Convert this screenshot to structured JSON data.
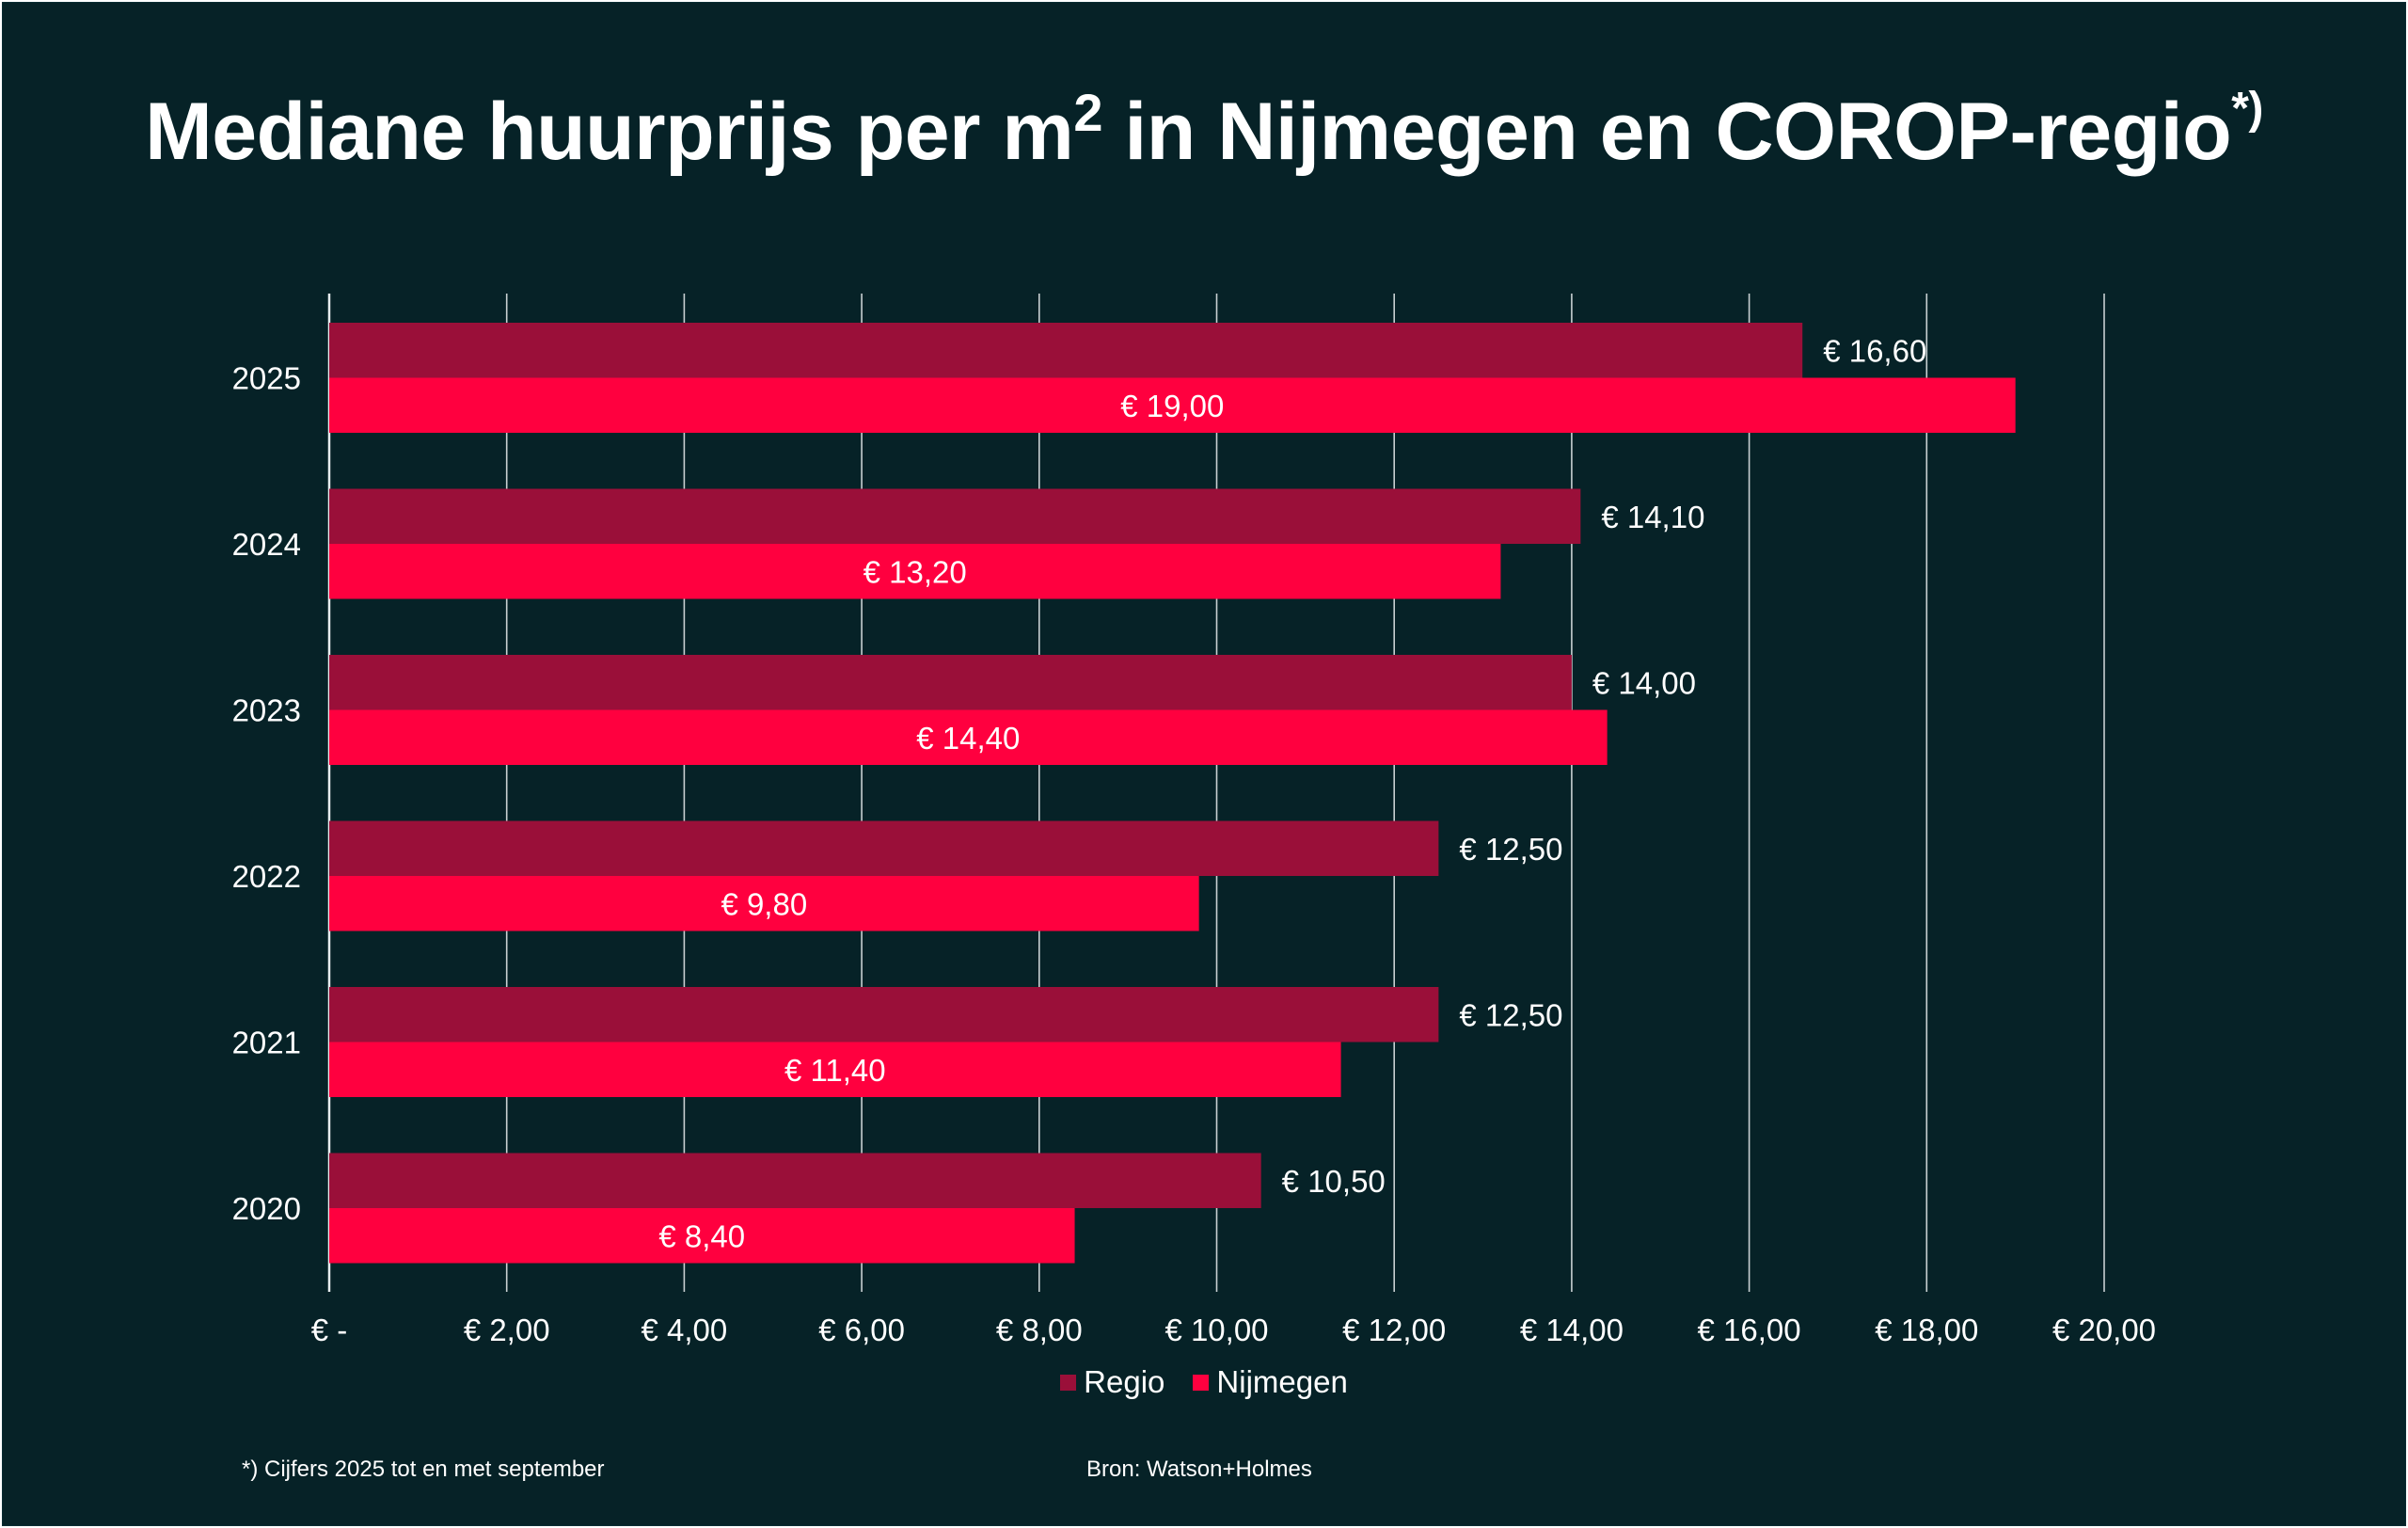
{
  "title": {
    "main": "Mediane huurprijs per m",
    "sup": "2",
    "rest": " in Nijmegen en COROP-regio",
    "note_mark": "*)"
  },
  "footnote": "*) Cijfers 2025 tot en met september",
  "source": "Bron: Watson+Holmes",
  "colors": {
    "background": "#062227",
    "regio": "#9A0F39",
    "nijmegen": "#FF003F",
    "gridline": "#c8d0d2",
    "text": "#ffffff"
  },
  "chart_data": {
    "type": "bar",
    "orientation": "horizontal",
    "categories": [
      "2025",
      "2024",
      "2023",
      "2022",
      "2021",
      "2020"
    ],
    "series": [
      {
        "name": "Regio",
        "values": [
          16.6,
          14.1,
          14.0,
          12.5,
          12.5,
          10.5
        ],
        "labels": [
          "€ 16,60",
          "€ 14,10",
          "€ 14,00",
          "€ 12,50",
          "€ 12,50",
          "€ 10,50"
        ],
        "label_position": "outside-end"
      },
      {
        "name": "Nijmegen",
        "values": [
          19.0,
          13.2,
          14.4,
          9.8,
          11.4,
          8.4
        ],
        "labels": [
          "€ 19,00",
          "€ 13,20",
          "€ 14,40",
          "€ 9,80",
          "€ 11,40",
          "€ 8,40"
        ],
        "label_position": "center"
      }
    ],
    "xlim": [
      0,
      20
    ],
    "xticks": [
      0,
      2,
      4,
      6,
      8,
      10,
      12,
      14,
      16,
      18,
      20
    ],
    "xtick_labels": [
      "€ -",
      "€ 2,00",
      "€ 4,00",
      "€ 6,00",
      "€ 8,00",
      "€ 10,00",
      "€ 12,00",
      "€ 14,00",
      "€ 16,00",
      "€ 18,00",
      "€ 20,00"
    ],
    "grid": "vertical",
    "legend": "bottom-center"
  }
}
